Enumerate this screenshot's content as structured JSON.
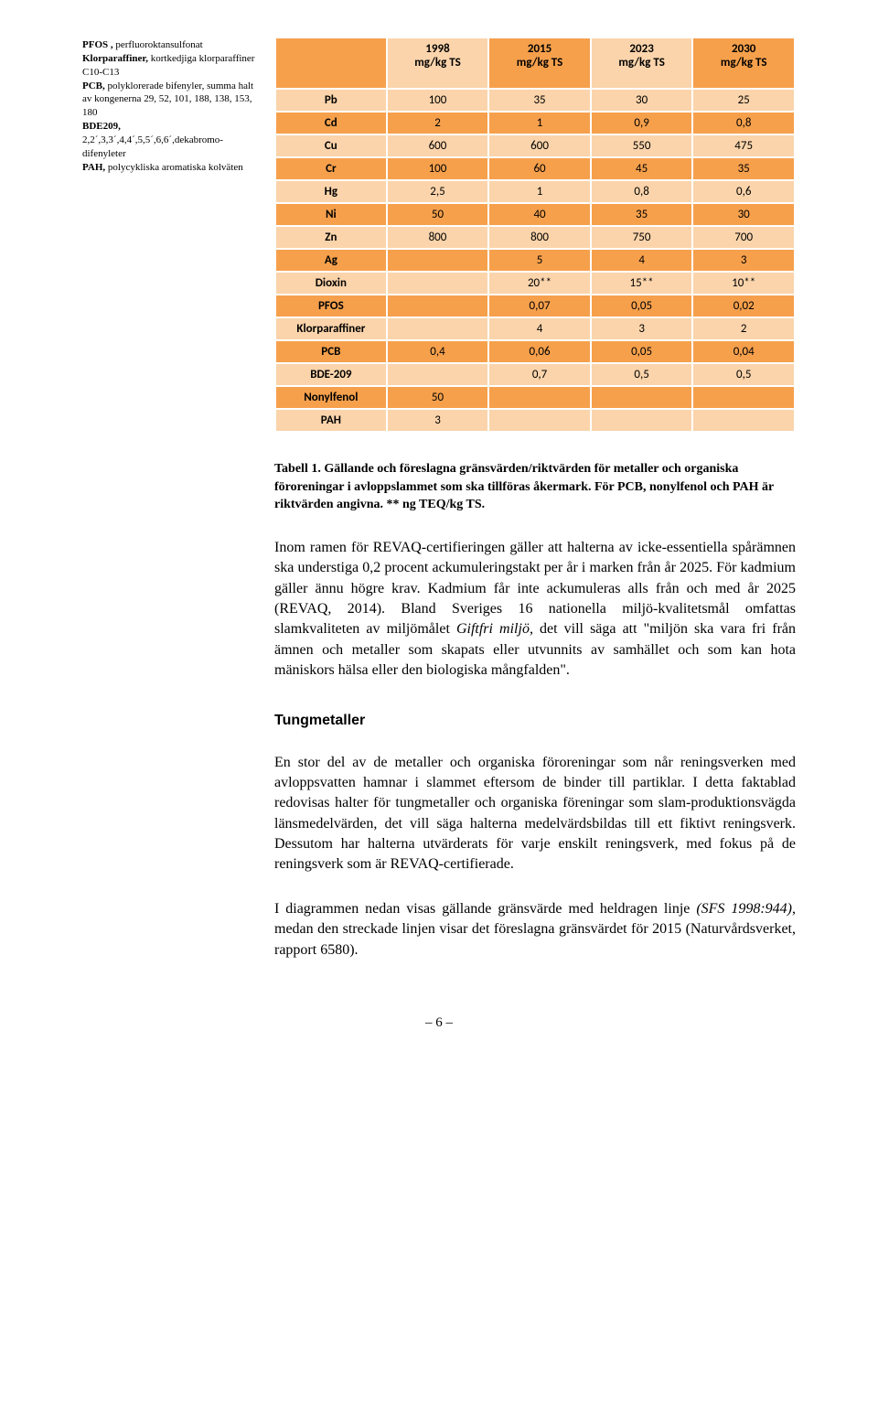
{
  "colors": {
    "orange": "#f6a04c",
    "peach": "#fbd4ab",
    "border": "#ffffff",
    "text": "#000000"
  },
  "leftNote": {
    "lines": [
      {
        "b": "PFOS ,",
        "t": " perfluoroktansulfonat"
      },
      {
        "b": "Klorparaffiner,",
        "t": " kortkedjiga klorparaffiner C10-C13"
      },
      {
        "b": "PCB,",
        "t": " polyklorerade bifenyler, summa halt av kongenerna 29, 52, 101, 188, 138, 153, 180"
      },
      {
        "b": "BDE209,",
        "t": ""
      },
      {
        "b": "",
        "t": "2,2´,3,3´,4,4´,5,5´,6,6´,dekabromo-difenyleter"
      },
      {
        "b": "PAH,",
        "t": " polycykliska aromatiska kolväten"
      }
    ]
  },
  "table": {
    "type": "table",
    "col_widths": [
      "120px",
      "110px",
      "110px",
      "110px",
      "110px"
    ],
    "header": {
      "cells": [
        "",
        "1998 mg/kg TS",
        "2015 mg/kg TS",
        "2023 mg/kg TS",
        "2030 mg/kg TS"
      ],
      "classes": [
        "h-orange",
        "h-peach",
        "h-orange",
        "h-peach",
        "h-orange"
      ]
    },
    "rows": [
      {
        "c": "r-peach",
        "label": "Pb",
        "v": [
          "100",
          "35",
          "30",
          "25"
        ]
      },
      {
        "c": "r-orange",
        "label": "Cd",
        "v": [
          "2",
          "1",
          "0,9",
          "0,8"
        ]
      },
      {
        "c": "r-peach",
        "label": "Cu",
        "v": [
          "600",
          "600",
          "550",
          "475"
        ]
      },
      {
        "c": "r-orange",
        "label": "Cr",
        "v": [
          "100",
          "60",
          "45",
          "35"
        ]
      },
      {
        "c": "r-peach",
        "label": "Hg",
        "v": [
          "2,5",
          "1",
          "0,8",
          "0,6"
        ]
      },
      {
        "c": "r-orange",
        "label": "Ni",
        "v": [
          "50",
          "40",
          "35",
          "30"
        ]
      },
      {
        "c": "r-peach",
        "label": "Zn",
        "v": [
          "800",
          "800",
          "750",
          "700"
        ]
      },
      {
        "c": "r-orange",
        "label": "Ag",
        "v": [
          "",
          "5",
          "4",
          "3"
        ]
      },
      {
        "c": "r-peach",
        "label": "Dioxin",
        "v": [
          "",
          "20**",
          "15**",
          "10**"
        ]
      },
      {
        "c": "r-orange",
        "label": "PFOS",
        "v": [
          "",
          "0,07",
          "0,05",
          "0,02"
        ]
      },
      {
        "c": "r-peach",
        "label": "Klorparaffiner",
        "v": [
          "",
          "4",
          "3",
          "2"
        ]
      },
      {
        "c": "r-orange",
        "label": "PCB",
        "v": [
          "0,4",
          "0,06",
          "0,05",
          "0,04"
        ]
      },
      {
        "c": "r-peach",
        "label": "BDE-209",
        "v": [
          "",
          "0,7",
          "0,5",
          "0,5"
        ]
      },
      {
        "c": "r-orange",
        "label": "Nonylfenol",
        "v": [
          "50",
          "",
          "",
          ""
        ]
      },
      {
        "c": "r-peach",
        "label": "PAH",
        "v": [
          "3",
          "",
          "",
          ""
        ]
      }
    ]
  },
  "caption": {
    "lead": "Tabell 1. Gällande och föreslagna gränsvärden/riktvärden för metaller och organiska föroreningar i avloppslammet som ska tillföras åkermark. För PCB, nonylfenol och PAH är riktvärden angivna. ** ng TEQ/kg TS."
  },
  "para1": "Inom ramen för REVAQ-certifieringen gäller att halterna av icke-essentiella spårämnen ska understiga 0,2 procent ackumuleringstakt per år i marken från år 2025. För kadmium gäller ännu högre krav. Kadmium får inte ackumuleras alls från och med år 2025 (REVAQ, 2014). Bland Sveriges 16 nationella miljö-kvalitetsmål omfattas slamkvaliteten av miljömålet ",
  "para1_em": "Giftfri miljö,",
  "para1_tail": " det vill säga att \"miljön ska vara fri från ämnen och metaller som skapats eller utvunnits av samhället och som kan hota mäniskors hälsa eller den biologiska mångfalden\".",
  "heading2": "Tungmetaller",
  "para2": "En stor del av de metaller och organiska föroreningar som når reningsverken med avloppsvatten hamnar i slammet eftersom de binder till partiklar. I detta faktablad redovisas halter för tungmetaller och organiska föreningar som slam-produktionsvägda länsmedelvärden, det vill säga halterna medelvärdsbildas till ett fiktivt reningsverk. Dessutom har halterna utvärderats för varje enskilt reningsverk, med fokus på de reningsverk som är REVAQ-certifierade.",
  "para3_a": "I diagrammen nedan visas gällande gränsvärde med heldragen linje ",
  "para3_em1": "(SFS 1998:944)",
  "para3_b": ", medan den streckade linjen visar det föreslagna gränsvärdet för 2015 (Naturvårdsverket, rapport 6580).",
  "footer": "– 6 –"
}
